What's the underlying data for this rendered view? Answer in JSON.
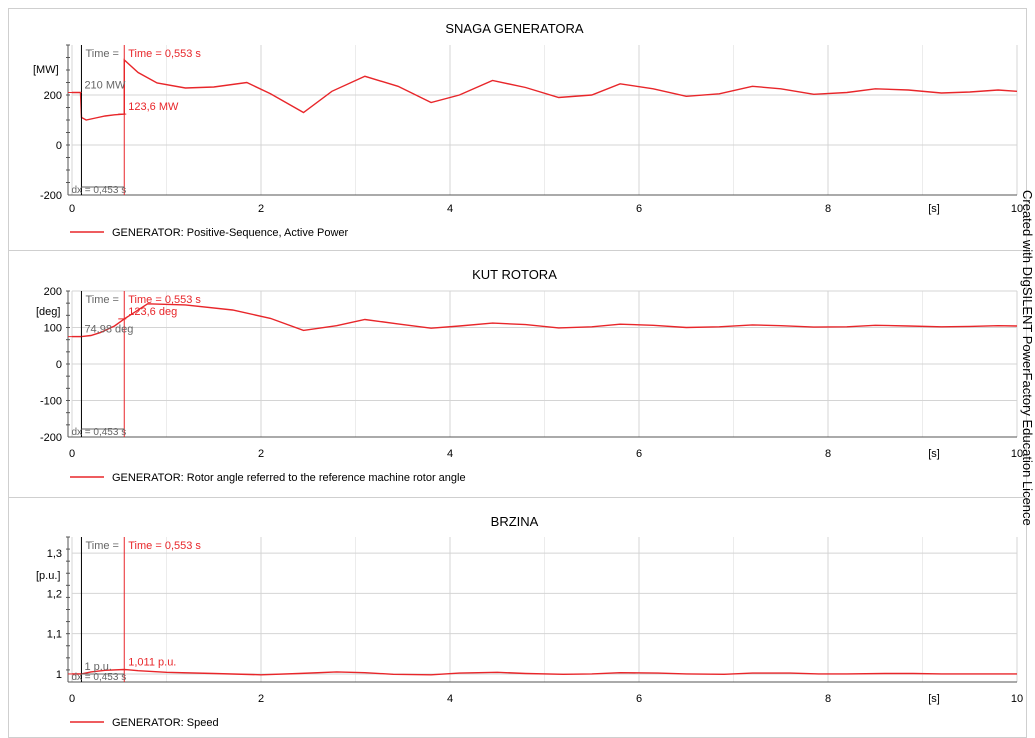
{
  "watermark": "Created with DIgSILENT PowerFactory Education Licence",
  "colors": {
    "series": "#e8262a",
    "cursor_ref": "#000000",
    "grid": "#d4d4d4",
    "axis": "#555555",
    "label_grey": "#666666"
  },
  "chart_data": [
    {
      "type": "line",
      "title": "SNAGA GENERATORA",
      "unit_label": "[MW]",
      "xunit_label": "[s]",
      "xlim": [
        0,
        10
      ],
      "ylim": [
        -200,
        400
      ],
      "xticks": [
        0,
        2,
        4,
        6,
        8,
        10
      ],
      "xtick_labels": [
        "0",
        "2",
        "4",
        "6",
        "8",
        "10"
      ],
      "yticks": [
        -200,
        0,
        200
      ],
      "ytick_labels": [
        "-200",
        "0",
        "200"
      ],
      "grid": true,
      "legend_position": "bottom-left",
      "series": [
        {
          "name": "GENERATOR: Positive-Sequence, Active Power",
          "x": [
            0,
            0.09,
            0.1,
            0.15,
            0.25,
            0.35,
            0.45,
            0.553,
            0.553,
            0.7,
            0.9,
            1.2,
            1.5,
            1.85,
            2.1,
            2.45,
            2.75,
            3.1,
            3.45,
            3.8,
            4.1,
            4.45,
            4.8,
            5.15,
            5.5,
            5.8,
            6.15,
            6.5,
            6.85,
            7.2,
            7.5,
            7.85,
            8.2,
            8.5,
            8.85,
            9.2,
            9.5,
            9.8,
            10
          ],
          "y": [
            210,
            210,
            110,
            100,
            108,
            116,
            121,
            123.6,
            340,
            290,
            248,
            228,
            232,
            250,
            205,
            130,
            215,
            275,
            235,
            170,
            200,
            258,
            230,
            190,
            200,
            245,
            225,
            195,
            205,
            235,
            225,
            203,
            210,
            225,
            220,
            208,
            212,
            220,
            215
          ]
        }
      ],
      "cursor": {
        "time_label": "Time = 0,553 s",
        "ref_time_label": "Time =",
        "ref_time": 0.1,
        "time": 0.553,
        "ref_value_label": "210 MW",
        "value_label": "123,6 MW",
        "value": 123.6,
        "dx_label": "dx = 0,453 s"
      }
    },
    {
      "type": "line",
      "title": "KUT ROTORA",
      "unit_label": "[deg]",
      "xunit_label": "[s]",
      "xlim": [
        0,
        10
      ],
      "ylim": [
        -200,
        200
      ],
      "xticks": [
        0,
        2,
        4,
        6,
        8,
        10
      ],
      "xtick_labels": [
        "0",
        "2",
        "4",
        "6",
        "8",
        "10"
      ],
      "yticks": [
        -200,
        -100,
        0,
        100,
        200
      ],
      "ytick_labels": [
        "-200",
        "-100",
        "0",
        "100",
        "200"
      ],
      "grid": true,
      "legend_position": "bottom-left",
      "series": [
        {
          "name": "GENERATOR: Rotor angle referred to the reference machine rotor angle",
          "x": [
            0,
            0.1,
            0.2,
            0.3,
            0.45,
            0.553,
            0.553,
            0.8,
            1.2,
            1.7,
            2.1,
            2.45,
            2.8,
            3.1,
            3.45,
            3.8,
            4.1,
            4.45,
            4.8,
            5.15,
            5.5,
            5.8,
            6.15,
            6.5,
            6.85,
            7.2,
            7.5,
            7.85,
            8.2,
            8.5,
            8.85,
            9.2,
            9.5,
            9.8,
            10
          ],
          "y": [
            74.98,
            74.98,
            78,
            86,
            104,
            123.6,
            123.6,
            165,
            162,
            148,
            125,
            92,
            105,
            122,
            110,
            98,
            104,
            112,
            108,
            99,
            102,
            109,
            106,
            100,
            102,
            107,
            105,
            101,
            102,
            106,
            104,
            102,
            103,
            105,
            104
          ]
        }
      ],
      "cursor": {
        "time_label": "Time = 0,553 s",
        "ref_time_label": "Time =",
        "ref_time": 0.1,
        "time": 0.553,
        "ref_value_label": "74,98 deg",
        "value_label": "123,6 deg",
        "value": 123.6,
        "dx_label": "dx = 0,453 s"
      }
    },
    {
      "type": "line",
      "title": "BRZINA",
      "unit_label": "[p.u.]",
      "xunit_label": "[s]",
      "xlim": [
        0,
        10
      ],
      "ylim": [
        0.98,
        1.34
      ],
      "xticks": [
        0,
        2,
        4,
        6,
        8,
        10
      ],
      "xtick_labels": [
        "0",
        "2",
        "4",
        "6",
        "8",
        "10"
      ],
      "yticks": [
        1,
        1.1,
        1.2,
        1.3
      ],
      "ytick_labels": [
        "1",
        "1,1",
        "1,2",
        "1,3"
      ],
      "grid": true,
      "legend_position": "bottom-left",
      "series": [
        {
          "name": "GENERATOR: Speed",
          "x": [
            0,
            0.1,
            0.2,
            0.35,
            0.553,
            0.7,
            1.0,
            1.5,
            2.0,
            2.4,
            2.8,
            3.1,
            3.4,
            3.8,
            4.1,
            4.5,
            4.8,
            5.2,
            5.5,
            5.8,
            6.2,
            6.5,
            6.9,
            7.2,
            7.6,
            7.9,
            8.2,
            8.6,
            8.9,
            9.2,
            9.6,
            10
          ],
          "y": [
            1.0,
            1.0,
            1.005,
            1.009,
            1.011,
            1.008,
            1.004,
            1.001,
            0.998,
            1.001,
            1.005,
            1.003,
            0.999,
            0.998,
            1.002,
            1.004,
            1.001,
            0.999,
            1.0,
            1.003,
            1.002,
            1.0,
            0.999,
            1.002,
            1.002,
            1.0,
            1.0,
            1.001,
            1.001,
            1.0,
            1.0,
            1.0
          ]
        }
      ],
      "cursor": {
        "time_label": "Time = 0,553 s",
        "ref_time_label": "Time =",
        "ref_time": 0.1,
        "time": 0.553,
        "ref_value_label": "1 p.u.",
        "value_label": "1,011 p.u.",
        "value": 1.011,
        "dx_label": "dx = 0,453 s"
      }
    }
  ]
}
